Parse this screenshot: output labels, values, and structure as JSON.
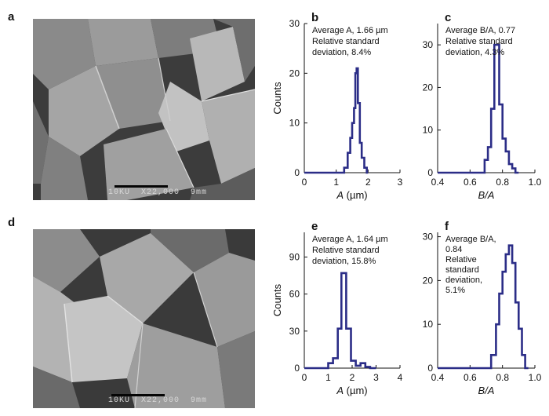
{
  "panels": [
    {
      "letter": "a",
      "caption": "10KU  X22,000  9mm"
    },
    {
      "letter": "d",
      "caption": "10KU  X22,000  9mm"
    }
  ],
  "colors": {
    "line": "#2b2d87",
    "axis": "#111111"
  },
  "chart_data": [
    {
      "panel": "b",
      "type": "line",
      "annotation": [
        "Average A, 1.66 µm",
        "Relative standard",
        "deviation, 8.4%"
      ],
      "annotation_italic": "A",
      "xlabel_italic": "A",
      "xlabel_rest": " (µm)",
      "ylabel": "Counts",
      "xlim": [
        0,
        3
      ],
      "ylim": [
        0,
        30
      ],
      "xticks": [
        0,
        1,
        2,
        3
      ],
      "yticks": [
        0,
        10,
        20,
        30
      ],
      "xticklabels": [
        "0",
        "1",
        "2",
        "3"
      ],
      "yticklabels": [
        "0",
        "10",
        "20",
        "30"
      ],
      "step_x": [
        0,
        1.25,
        1.25,
        1.36,
        1.36,
        1.44,
        1.44,
        1.5,
        1.5,
        1.56,
        1.56,
        1.6,
        1.6,
        1.64,
        1.64,
        1.68,
        1.68,
        1.74,
        1.74,
        1.8,
        1.8,
        1.88,
        1.88,
        1.96,
        1.96,
        2.0
      ],
      "step_y": [
        0,
        0,
        1,
        1,
        4,
        4,
        7,
        7,
        10,
        10,
        13,
        13,
        20,
        20,
        21,
        21,
        14,
        14,
        6,
        6,
        3,
        3,
        1,
        1,
        0,
        0
      ]
    },
    {
      "panel": "c",
      "type": "line",
      "annotation": [
        "Average B/A, 0.77",
        "Relative standard",
        "deviation, 4.3%"
      ],
      "annotation_italic": "B/A",
      "xlabel_italic": "B/A",
      "xlabel_rest": "",
      "ylabel": "",
      "xlim": [
        0.4,
        1.0
      ],
      "ylim": [
        0,
        35
      ],
      "xticks": [
        0.4,
        0.6,
        0.8,
        1.0
      ],
      "yticks": [
        0,
        10,
        20,
        30
      ],
      "xticklabels": [
        "0.4",
        "0.6",
        "0.8",
        "1.0"
      ],
      "yticklabels": [
        "0",
        "10",
        "20",
        "30"
      ],
      "step_x": [
        0.4,
        0.69,
        0.69,
        0.71,
        0.71,
        0.73,
        0.73,
        0.75,
        0.75,
        0.78,
        0.78,
        0.8,
        0.8,
        0.82,
        0.82,
        0.84,
        0.84,
        0.86,
        0.86,
        0.88,
        0.88,
        0.9
      ],
      "step_y": [
        0,
        0,
        3,
        3,
        6,
        6,
        15,
        15,
        30,
        30,
        16,
        16,
        8,
        8,
        5,
        5,
        2,
        2,
        1,
        1,
        0,
        0
      ]
    },
    {
      "panel": "e",
      "type": "line",
      "annotation": [
        "Average A, 1.64 µm",
        "Relative standard",
        "deviation, 15.8%"
      ],
      "annotation_italic": "A",
      "xlabel_italic": "A",
      "xlabel_rest": " (µm)",
      "ylabel": "Counts",
      "xlim": [
        0,
        4
      ],
      "ylim": [
        0,
        110
      ],
      "xticks": [
        0,
        1,
        2,
        3,
        4
      ],
      "yticks": [
        0,
        30,
        60,
        90
      ],
      "xticklabels": [
        "0",
        "1",
        "2",
        "3",
        "4"
      ],
      "yticklabels": [
        "0",
        "30",
        "60",
        "90"
      ],
      "step_x": [
        0,
        1.0,
        1.0,
        1.2,
        1.2,
        1.4,
        1.4,
        1.55,
        1.55,
        1.75,
        1.75,
        1.95,
        1.95,
        2.15,
        2.15,
        2.35,
        2.35,
        2.55,
        2.55,
        2.75,
        2.75,
        3.0
      ],
      "step_y": [
        0,
        0,
        4,
        4,
        8,
        8,
        32,
        32,
        77,
        77,
        32,
        32,
        6,
        6,
        2,
        2,
        4,
        4,
        1,
        1,
        0,
        0
      ]
    },
    {
      "panel": "f",
      "type": "line",
      "annotation": [
        "Average B/A,",
        "0.84",
        "Relative",
        "standard",
        "deviation,",
        "5.1%"
      ],
      "annotation_italic": "B/A",
      "xlabel_italic": "B/A",
      "xlabel_rest": "",
      "ylabel": "",
      "xlim": [
        0.4,
        1.0
      ],
      "ylim": [
        0,
        31
      ],
      "xticks": [
        0.4,
        0.6,
        0.8,
        1.0
      ],
      "yticks": [
        0,
        10,
        20,
        30
      ],
      "xticklabels": [
        "0.4",
        "0.6",
        "0.8",
        "1.0"
      ],
      "yticklabels": [
        "0",
        "10",
        "20",
        "30"
      ],
      "step_x": [
        0.4,
        0.73,
        0.73,
        0.76,
        0.76,
        0.78,
        0.78,
        0.8,
        0.8,
        0.82,
        0.82,
        0.84,
        0.84,
        0.86,
        0.86,
        0.88,
        0.88,
        0.9,
        0.9,
        0.92,
        0.92,
        0.94,
        0.94,
        0.96
      ],
      "step_y": [
        0,
        0,
        3,
        3,
        10,
        10,
        17,
        17,
        22,
        22,
        26,
        26,
        28,
        28,
        24,
        24,
        15,
        15,
        9,
        9,
        3,
        3,
        0,
        0
      ]
    }
  ]
}
